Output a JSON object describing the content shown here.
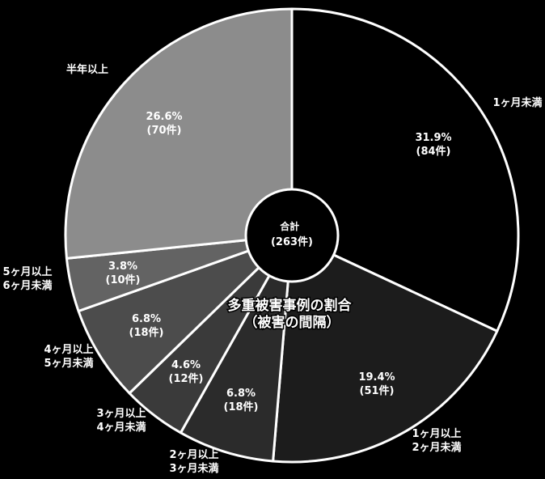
{
  "chart_data": {
    "type": "pie",
    "title": [
      "多重被害事例の割合",
      "（被害の間隔）"
    ],
    "center_label": [
      "合計",
      "(263件)"
    ],
    "total": 263,
    "slices": [
      {
        "category": [
          "1ヶ月未満"
        ],
        "percent": "31.9%",
        "count": "(84件)",
        "value": 84,
        "color": "#000000"
      },
      {
        "category": [
          "1ヶ月以上",
          "2ヶ月未満"
        ],
        "percent": "19.4%",
        "count": "(51件)",
        "value": 51,
        "color": "#1c1c1c"
      },
      {
        "category": [
          "2ヶ月以上",
          "3ヶ月未満"
        ],
        "percent": "6.8%",
        "count": "(18件)",
        "value": 18,
        "color": "#2b2b2b"
      },
      {
        "category": [
          "3ヶ月以上",
          "4ヶ月未満"
        ],
        "percent": "4.6%",
        "count": "(12件)",
        "value": 12,
        "color": "#3a3a3a"
      },
      {
        "category": [
          "4ヶ月以上",
          "5ヶ月未満"
        ],
        "percent": "6.8%",
        "count": "(18件)",
        "value": 18,
        "color": "#4c4c4c"
      },
      {
        "category": [
          "5ヶ月以上",
          "6ヶ月未満"
        ],
        "percent": "3.8%",
        "count": "(10件)",
        "value": 10,
        "color": "#636363"
      },
      {
        "category": [
          "半年以上"
        ],
        "percent": "26.6%",
        "count": "(70件)",
        "value": 70,
        "color": "#8c8c8c"
      }
    ],
    "start": "12 o'clock",
    "direction": "clockwise"
  }
}
